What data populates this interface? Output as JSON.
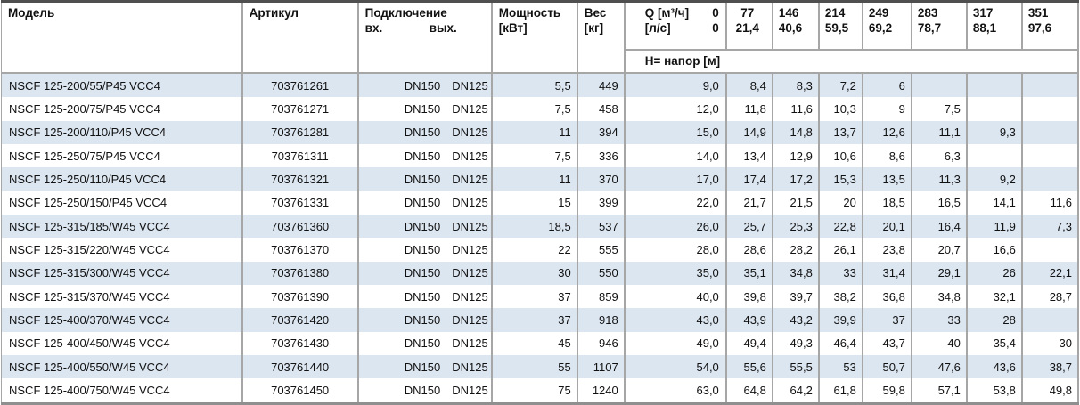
{
  "header": {
    "model": "Модель",
    "article": "Артикул",
    "connection": "Подключение",
    "conn_in": "вх.",
    "conn_out": "вых.",
    "power": [
      "Мощность",
      "[кВт]"
    ],
    "weight": [
      "Вес",
      "[кг]"
    ],
    "q_label": "Q [м³/ч]",
    "q_0_m3h": "0",
    "q_ls_label": "[л/с]",
    "q_0_ls": "0",
    "q_columns": [
      {
        "m3h": "77",
        "ls": "21,4"
      },
      {
        "m3h": "146",
        "ls": "40,6"
      },
      {
        "m3h": "214",
        "ls": "59,5"
      },
      {
        "m3h": "249",
        "ls": "69,2"
      },
      {
        "m3h": "283",
        "ls": "78,7"
      },
      {
        "m3h": "317",
        "ls": "88,1"
      },
      {
        "m3h": "351",
        "ls": "97,6"
      }
    ],
    "head_row_label": "H= напор [м]"
  },
  "rows": [
    {
      "model": "NSCF 125-200/55/P45 VCC4",
      "article": "703761261",
      "dn_in": "DN150",
      "dn_out": "DN125",
      "power": "5,5",
      "weight": "449",
      "h": [
        "9,0",
        "8,4",
        "8,3",
        "7,2",
        "6",
        "",
        "",
        ""
      ]
    },
    {
      "model": "NSCF 125-200/75/P45 VCC4",
      "article": "703761271",
      "dn_in": "DN150",
      "dn_out": "DN125",
      "power": "7,5",
      "weight": "458",
      "h": [
        "12,0",
        "11,8",
        "11,6",
        "10,3",
        "9",
        "7,5",
        "",
        ""
      ]
    },
    {
      "model": "NSCF 125-200/110/P45 VCC4",
      "article": "703761281",
      "dn_in": "DN150",
      "dn_out": "DN125",
      "power": "11",
      "weight": "394",
      "h": [
        "15,0",
        "14,9",
        "14,8",
        "13,7",
        "12,6",
        "11,1",
        "9,3",
        ""
      ]
    },
    {
      "model": "NSCF 125-250/75/P45 VCC4",
      "article": "703761311",
      "dn_in": "DN150",
      "dn_out": "DN125",
      "power": "7,5",
      "weight": "336",
      "h": [
        "14,0",
        "13,4",
        "12,9",
        "10,6",
        "8,6",
        "6,3",
        "",
        ""
      ]
    },
    {
      "model": "NSCF 125-250/110/P45 VCC4",
      "article": "703761321",
      "dn_in": "DN150",
      "dn_out": "DN125",
      "power": "11",
      "weight": "370",
      "h": [
        "17,0",
        "17,4",
        "17,2",
        "15,3",
        "13,5",
        "11,3",
        "9,2",
        ""
      ]
    },
    {
      "model": "NSCF 125-250/150/P45 VCC4",
      "article": "703761331",
      "dn_in": "DN150",
      "dn_out": "DN125",
      "power": "15",
      "weight": "399",
      "h": [
        "22,0",
        "21,7",
        "21,5",
        "20",
        "18,5",
        "16,5",
        "14,1",
        "11,6"
      ]
    },
    {
      "model": "NSCF 125-315/185/W45 VCC4",
      "article": "703761360",
      "dn_in": "DN150",
      "dn_out": "DN125",
      "power": "18,5",
      "weight": "537",
      "h": [
        "26,0",
        "25,7",
        "25,3",
        "22,8",
        "20,1",
        "16,4",
        "11,9",
        "7,3"
      ]
    },
    {
      "model": "NSCF 125-315/220/W45 VCC4",
      "article": "703761370",
      "dn_in": "DN150",
      "dn_out": "DN125",
      "power": "22",
      "weight": "555",
      "h": [
        "28,0",
        "28,6",
        "28,2",
        "26,1",
        "23,8",
        "20,7",
        "16,6",
        ""
      ]
    },
    {
      "model": "NSCF 125-315/300/W45 VCC4",
      "article": "703761380",
      "dn_in": "DN150",
      "dn_out": "DN125",
      "power": "30",
      "weight": "550",
      "h": [
        "35,0",
        "35,1",
        "34,8",
        "33",
        "31,4",
        "29,1",
        "26",
        "22,1"
      ]
    },
    {
      "model": "NSCF 125-315/370/W45 VCC4",
      "article": "703761390",
      "dn_in": "DN150",
      "dn_out": "DN125",
      "power": "37",
      "weight": "859",
      "h": [
        "40,0",
        "39,8",
        "39,7",
        "38,2",
        "36,8",
        "34,8",
        "32,1",
        "28,7"
      ]
    },
    {
      "model": "NSCF 125-400/370/W45 VCC4",
      "article": "703761420",
      "dn_in": "DN150",
      "dn_out": "DN125",
      "power": "37",
      "weight": "918",
      "h": [
        "43,0",
        "43,9",
        "43,2",
        "39,9",
        "37",
        "33",
        "28",
        ""
      ]
    },
    {
      "model": "NSCF 125-400/450/W45 VCC4",
      "article": "703761430",
      "dn_in": "DN150",
      "dn_out": "DN125",
      "power": "45",
      "weight": "946",
      "h": [
        "49,0",
        "49,4",
        "49,3",
        "46,4",
        "43,7",
        "40",
        "35,4",
        "30"
      ]
    },
    {
      "model": "NSCF 125-400/550/W45 VCC4",
      "article": "703761440",
      "dn_in": "DN150",
      "dn_out": "DN125",
      "power": "55",
      "weight": "1107",
      "h": [
        "54,0",
        "55,6",
        "55,5",
        "53",
        "50,7",
        "47,6",
        "43,6",
        "38,7"
      ]
    },
    {
      "model": "NSCF 125-400/750/W45 VCC4",
      "article": "703761450",
      "dn_in": "DN150",
      "dn_out": "DN125",
      "power": "75",
      "weight": "1240",
      "h": [
        "63,0",
        "64,8",
        "64,2",
        "61,8",
        "59,8",
        "57,1",
        "53,8",
        "49,8"
      ]
    }
  ],
  "colors": {
    "row_alt": "#dce6f1",
    "grid_border": "#a6a6a6",
    "top_border": "#4f4f4f",
    "bottom_border": "#8f8f8f"
  }
}
